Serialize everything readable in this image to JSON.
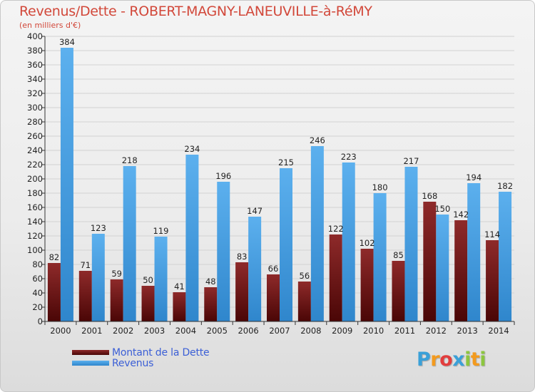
{
  "chart_data": {
    "type": "bar",
    "title": "Revenus/Dette - ROBERT-MAGNY-LANEUVILLE-à-RéMY",
    "subtitle": "(en milliers d'€)",
    "categories": [
      "2000",
      "2001",
      "2002",
      "2003",
      "2004",
      "2005",
      "2006",
      "2007",
      "2008",
      "2009",
      "2010",
      "2011",
      "2012",
      "2013",
      "2014"
    ],
    "series": [
      {
        "name": "Montant de la Dette",
        "color": "#7a1a1a",
        "values": [
          82,
          71,
          59,
          50,
          41,
          48,
          83,
          66,
          56,
          122,
          102,
          85,
          168,
          142,
          114
        ]
      },
      {
        "name": "Revenus",
        "color": "#4aa3e6",
        "values": [
          384,
          123,
          218,
          119,
          234,
          196,
          147,
          215,
          246,
          223,
          180,
          217,
          150,
          194,
          182
        ]
      }
    ],
    "ylim": [
      0,
      400
    ],
    "ytick_step": 20,
    "grid": true,
    "legend_position": "bottom-left"
  },
  "logo": {
    "letters": [
      "P",
      "r",
      "o",
      "x",
      "i",
      "t",
      "i"
    ],
    "colors": [
      "#3aa0d8",
      "#f39a1e",
      "#e23d3d",
      "#3aa0d8",
      "#8cc63f",
      "#f39a1e",
      "#8cc63f"
    ]
  }
}
